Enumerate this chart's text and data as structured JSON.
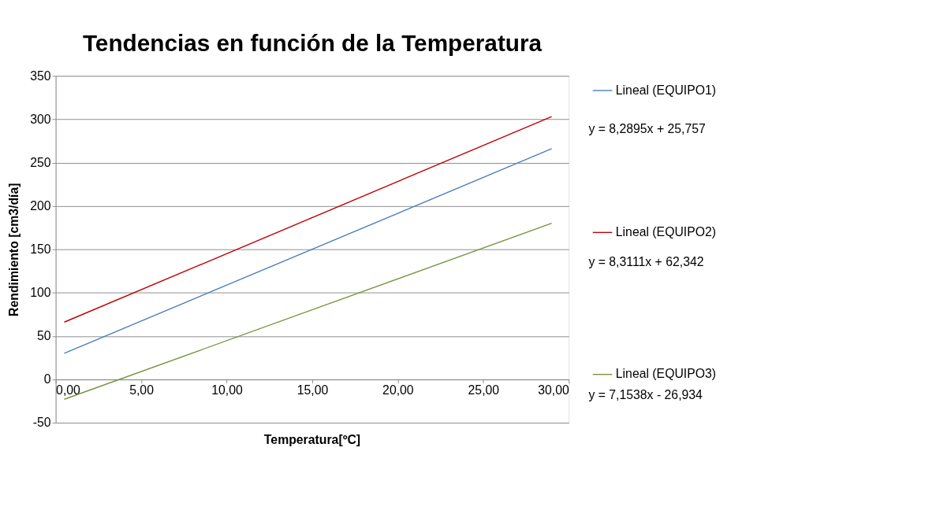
{
  "chart_data": {
    "type": "line",
    "title": "Tendencias en función de la Temperatura",
    "xlabel": "Temperatura[ºC]",
    "ylabel": "Rendimiento [cm3/día]",
    "x": [
      0.5,
      29
    ],
    "series": [
      {
        "name": "Lineal (EQUIPO1)",
        "color": "#4a7ebb",
        "values": [
          30,
          266
        ]
      },
      {
        "name": "Lineal (EQUIPO2)",
        "color": "#c00000",
        "values": [
          66,
          303
        ]
      },
      {
        "name": "Lineal (EQUIPO3)",
        "color": "#77933c",
        "values": [
          -23,
          180
        ]
      }
    ],
    "annotations": [
      "y = 8,2895x + 25,757",
      "y = 8,3111x + 62,342",
      "y = 7,1538x - 26,934"
    ],
    "xlim": [
      0,
      30
    ],
    "xticks": [
      {
        "value": 0,
        "label": "0,00"
      },
      {
        "value": 5,
        "label": "5,00"
      },
      {
        "value": 10,
        "label": "10,00"
      },
      {
        "value": 15,
        "label": "15,00"
      },
      {
        "value": 20,
        "label": "20,00"
      },
      {
        "value": 25,
        "label": "25,00"
      },
      {
        "value": 30,
        "label": "30,00"
      }
    ],
    "ylim": [
      -50,
      350
    ],
    "yticks": [
      -50,
      0,
      50,
      100,
      150,
      200,
      250,
      300,
      350
    ],
    "grid": "y",
    "legend": "right",
    "marker": "none",
    "line_style": "solid"
  }
}
